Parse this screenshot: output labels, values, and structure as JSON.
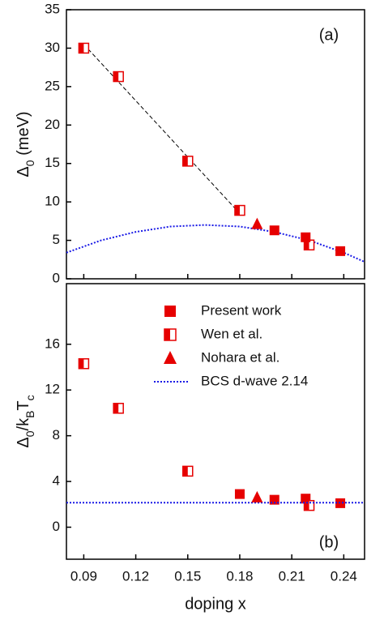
{
  "chart_data": [
    {
      "type": "scatter",
      "label": "(a)",
      "ylabel": [
        "Δ",
        "0",
        " (meV)"
      ],
      "xlim": [
        0.08,
        0.252
      ],
      "xticks": [
        0.09,
        0.12,
        0.15,
        0.18,
        0.21,
        0.24
      ],
      "show_xtick_labels": false,
      "ylim": [
        0,
        35
      ],
      "yticks": [
        0,
        5,
        10,
        15,
        20,
        25,
        30,
        35
      ],
      "series": [
        {
          "marker": "dashed-line",
          "color": "#000000",
          "x": [
            0.09,
            0.18
          ],
          "values": [
            30.5,
            8.5
          ]
        },
        {
          "marker": "dotted-line",
          "color": "#1a1ae6",
          "x": [
            0.08,
            0.1,
            0.12,
            0.14,
            0.16,
            0.18,
            0.2,
            0.22,
            0.24,
            0.252
          ],
          "values": [
            3.4,
            5.0,
            6.1,
            6.8,
            7.0,
            6.8,
            6.1,
            5.0,
            3.4,
            2.2
          ]
        },
        {
          "marker": "half-square",
          "color": "#e60000",
          "x": [
            0.09,
            0.11,
            0.15,
            0.18,
            0.22
          ],
          "values": [
            30.0,
            26.3,
            15.3,
            8.9,
            4.4
          ]
        },
        {
          "marker": "square",
          "color": "#e60000",
          "x": [
            0.2,
            0.218,
            0.238
          ],
          "values": [
            6.3,
            5.4,
            3.6
          ]
        },
        {
          "marker": "triangle",
          "color": "#e60000",
          "x": [
            0.19
          ],
          "values": [
            7.1
          ]
        }
      ]
    },
    {
      "type": "scatter",
      "label": "(b)",
      "ylabel": [
        "Δ",
        "0",
        "/k",
        "B",
        "T",
        "c"
      ],
      "xlabel": "doping x",
      "xlim": [
        0.08,
        0.252
      ],
      "xticks": [
        0.09,
        0.12,
        0.15,
        0.18,
        0.21,
        0.24
      ],
      "show_xtick_labels": true,
      "ylim": [
        -2.8,
        21.3
      ],
      "yticks": [
        0,
        4,
        8,
        12,
        16
      ],
      "legend": "top-right",
      "series": [
        {
          "name": "Present work",
          "marker": "square",
          "color": "#e60000",
          "x": [
            0.18,
            0.2,
            0.218,
            0.238
          ],
          "values": [
            2.9,
            2.4,
            2.5,
            2.1
          ]
        },
        {
          "name": "Wen et al.",
          "marker": "half-square",
          "color": "#e60000",
          "x": [
            0.09,
            0.11,
            0.15,
            0.22
          ],
          "values": [
            14.3,
            10.4,
            4.9,
            1.9
          ]
        },
        {
          "name": "Nohara et al.",
          "marker": "triangle",
          "color": "#e60000",
          "x": [
            0.19
          ],
          "values": [
            2.6
          ]
        },
        {
          "name": "BCS d-wave 2.14",
          "marker": "dotted-line",
          "color": "#1a1ae6",
          "x": [
            0.08,
            0.252
          ],
          "values": [
            2.14,
            2.14
          ]
        }
      ]
    }
  ]
}
